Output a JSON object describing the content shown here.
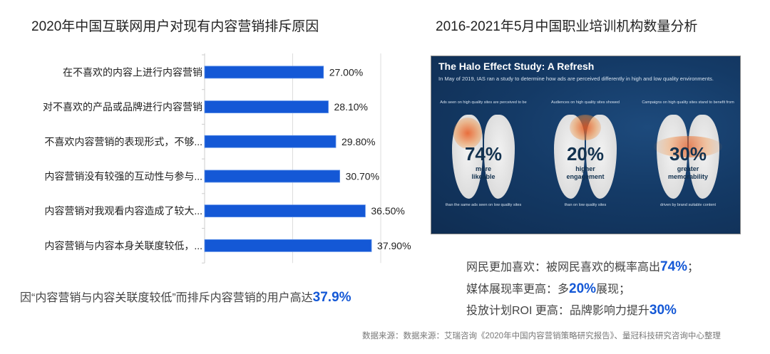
{
  "left_panel": {
    "title": "2020年中国互联网用户对现有内容营销排斥原因",
    "note": {
      "prefix": "因“内容营销与内容关联度较低”而排斥内容营销的用户高达",
      "highlight": "37.9%"
    }
  },
  "right_panel": {
    "title": "2016-2021年5月中国职业培训机构数量分析",
    "image": {
      "title": "The Halo Effect Study: A Refresh",
      "subtitle": "In May of 2019, IAS ran a study to determine how ads are perceived differently in high and low quality environments.",
      "brains": [
        {
          "caption": "Ads seen on high quality sites are perceived to be",
          "percent": "74%",
          "desc_line1": "more",
          "desc_line2": "likeable",
          "footer": "than the same ads seen on low quality sites"
        },
        {
          "caption": "Audiences on high quality sites showed",
          "percent": "20%",
          "desc_line1": "higher",
          "desc_line2": "engagement",
          "footer": "than on low quality sites"
        },
        {
          "caption": "Campaigns on high quality sites stand to benefit from",
          "percent": "30%",
          "desc_line1": "greater",
          "desc_line2": "memorability",
          "footer": "driven by brand suitable content"
        }
      ]
    },
    "notes": [
      {
        "prefix": "网民更加喜欢：被网民喜欢的概率高出",
        "highlight": "74%",
        "suffix": "；"
      },
      {
        "prefix": "媒体展现率更高：多",
        "highlight": "20%",
        "suffix": "展现；"
      },
      {
        "prefix": "投放计划ROI 更高：品牌影响力提升",
        "highlight": "30%",
        "suffix": ""
      }
    ]
  },
  "source": "数据来源：数据来源：艾瑞咨询《2020年中国内容营销策略研究报告》、量冠科技研究咨询中心整理",
  "colors": {
    "bar": "#1458d6",
    "highlight": "#1458d6",
    "grid": "#dddddd"
  },
  "chart_data": {
    "type": "bar",
    "orientation": "horizontal",
    "title": "2020年中国互联网用户对现有内容营销排斥原因",
    "categories": [
      "在不喜欢的内容上进行内容营销",
      "对不喜欢的产品或品牌进行内容营销",
      "不喜欢内容营销的表现形式，不够...",
      "内容营销没有较强的互动性与参与...",
      "内容营销对我观看内容造成了较大...",
      "内容营销与内容本身关联度较低，..."
    ],
    "values": [
      27.0,
      28.1,
      29.8,
      30.7,
      36.5,
      37.9
    ],
    "value_labels": [
      "27.00%",
      "28.10%",
      "29.80%",
      "30.70%",
      "36.50%",
      "37.90%"
    ],
    "unit": "%",
    "xlabel": "",
    "ylabel": "",
    "xlim": [
      0,
      40
    ],
    "gridlines": [
      0,
      20,
      40
    ],
    "grid": true,
    "legend": "none"
  }
}
